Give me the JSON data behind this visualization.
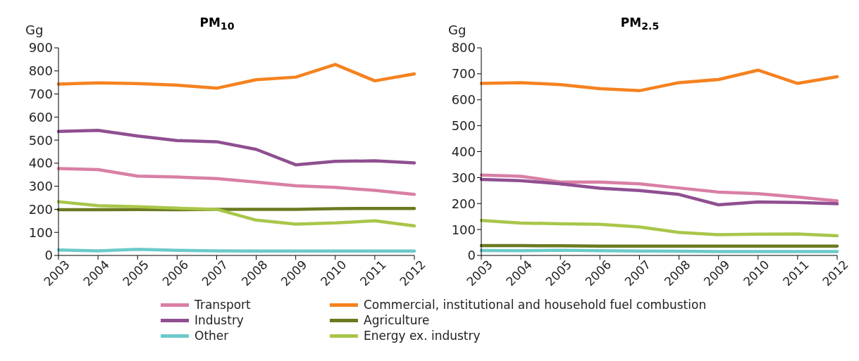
{
  "chart_data": [
    {
      "type": "line",
      "title": "PM$_{10}$",
      "ylabel": "Gg",
      "categories": [
        "2003",
        "2004",
        "2005",
        "2006",
        "2007",
        "2008",
        "2009",
        "2010",
        "2011",
        "2012"
      ],
      "ylim": [
        0,
        900
      ],
      "yticks": [
        0,
        100,
        200,
        300,
        400,
        500,
        600,
        700,
        800,
        900
      ],
      "grid": false,
      "legend": "bottom",
      "marker": "none",
      "line_style": "solid",
      "series": [
        {
          "name": "Transport",
          "color": "#d97fa6",
          "values": [
            377,
            372,
            344,
            340,
            333,
            318,
            302,
            295,
            282,
            265
          ]
        },
        {
          "name": "Commercial, institutional and household fuel combustion",
          "color": "#f5821f",
          "values": [
            743,
            748,
            745,
            738,
            725,
            762,
            773,
            828,
            757,
            787
          ]
        },
        {
          "name": "Industry",
          "color": "#8f4f91",
          "values": [
            538,
            542,
            518,
            498,
            493,
            460,
            393,
            408,
            410,
            401
          ]
        },
        {
          "name": "Agriculture",
          "color": "#6b7a21",
          "values": [
            198,
            198,
            199,
            198,
            200,
            200,
            200,
            203,
            204,
            204
          ]
        },
        {
          "name": "Other",
          "color": "#6ccac9",
          "values": [
            24,
            20,
            27,
            22,
            20,
            19,
            19,
            19,
            19,
            19
          ]
        },
        {
          "name": "Energy ex. industry",
          "color": "#a8c64a",
          "values": [
            233,
            216,
            211,
            205,
            200,
            153,
            136,
            141,
            150,
            128
          ]
        }
      ]
    },
    {
      "type": "line",
      "title": "PM$_{2.5}$",
      "ylabel": "Gg",
      "categories": [
        "2003",
        "2004",
        "2005",
        "2006",
        "2007",
        "2008",
        "2009",
        "2010",
        "2011",
        "2012"
      ],
      "ylim": [
        0,
        800
      ],
      "yticks": [
        0,
        100,
        200,
        300,
        400,
        500,
        600,
        700,
        800
      ],
      "grid": false,
      "legend": "bottom",
      "marker": "none",
      "line_style": "solid",
      "series": [
        {
          "name": "Transport",
          "color": "#d97fa6",
          "values": [
            310,
            305,
            283,
            283,
            276,
            260,
            244,
            238,
            225,
            210
          ]
        },
        {
          "name": "Commercial, institutional and household fuel combustion",
          "color": "#f5821f",
          "values": [
            663,
            666,
            658,
            643,
            635,
            666,
            678,
            714,
            663,
            689
          ]
        },
        {
          "name": "Industry",
          "color": "#8f4f91",
          "values": [
            293,
            288,
            276,
            259,
            250,
            235,
            195,
            206,
            204,
            199
          ]
        },
        {
          "name": "Agriculture",
          "color": "#6b7a21",
          "values": [
            38,
            38,
            37,
            36,
            36,
            36,
            36,
            36,
            36,
            36
          ]
        },
        {
          "name": "Other",
          "color": "#6ccac9",
          "values": [
            19,
            18,
            20,
            18,
            17,
            16,
            15,
            15,
            15,
            15
          ]
        },
        {
          "name": "Energy ex. industry",
          "color": "#a8c64a",
          "values": [
            135,
            125,
            122,
            120,
            110,
            89,
            80,
            82,
            83,
            76
          ]
        }
      ]
    }
  ]
}
